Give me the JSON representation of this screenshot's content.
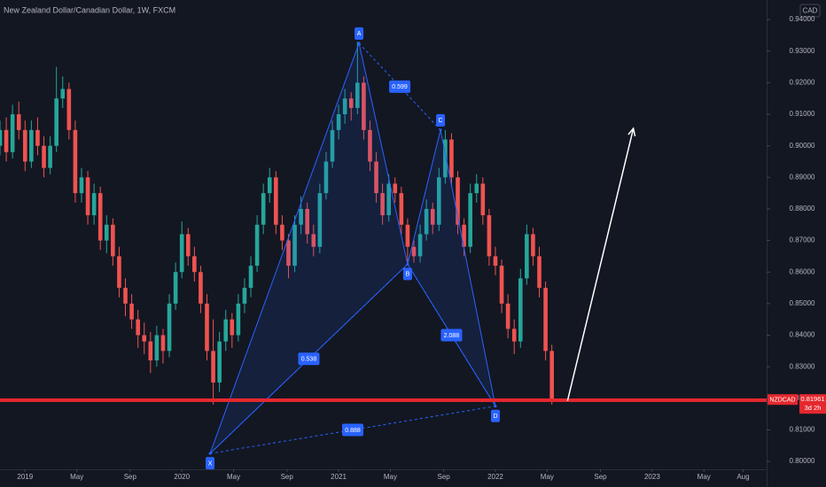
{
  "chart_data": {
    "type": "candlestick",
    "title": "New Zealand Dollar/Canadian Dollar, 1W, FXCM",
    "currency": "CAD",
    "symbol": "NZDCAD",
    "countdown": "3d 2h",
    "last_price": 0.81961,
    "level_line": 0.8194,
    "up_color": "#26a69a",
    "down_color": "#ef5350",
    "level_color": "#e5282e",
    "pattern_color": "#2962ff",
    "grid": false,
    "xlim": [
      2018.84,
      2023.73
    ],
    "ylim": [
      0.7975,
      0.9462
    ],
    "xticks": [
      {
        "value": 2019.0,
        "label": "2019"
      },
      {
        "value": 2019.33,
        "label": "May"
      },
      {
        "value": 2019.67,
        "label": "Sep"
      },
      {
        "value": 2020.0,
        "label": "2020"
      },
      {
        "value": 2020.33,
        "label": "May"
      },
      {
        "value": 2020.67,
        "label": "Sep"
      },
      {
        "value": 2021.0,
        "label": "2021"
      },
      {
        "value": 2021.33,
        "label": "May"
      },
      {
        "value": 2021.67,
        "label": "Sep"
      },
      {
        "value": 2022.0,
        "label": "2022"
      },
      {
        "value": 2022.33,
        "label": "May"
      },
      {
        "value": 2022.67,
        "label": "Sep"
      },
      {
        "value": 2023.0,
        "label": "2023"
      },
      {
        "value": 2023.33,
        "label": "May"
      },
      {
        "value": 2023.58,
        "label": "Aug"
      }
    ],
    "yticks": [
      {
        "value": 0.8,
        "label": "0.80000"
      },
      {
        "value": 0.81,
        "label": "0.81000"
      },
      {
        "value": 0.82,
        "label": "0.82000"
      },
      {
        "value": 0.83,
        "label": "0.83000"
      },
      {
        "value": 0.84,
        "label": "0.84000"
      },
      {
        "value": 0.85,
        "label": "0.85000"
      },
      {
        "value": 0.86,
        "label": "0.86000"
      },
      {
        "value": 0.87,
        "label": "0.87000"
      },
      {
        "value": 0.88,
        "label": "0.88000"
      },
      {
        "value": 0.89,
        "label": "0.89000"
      },
      {
        "value": 0.9,
        "label": "0.90000"
      },
      {
        "value": 0.91,
        "label": "0.91000"
      },
      {
        "value": 0.92,
        "label": "0.92000"
      },
      {
        "value": 0.93,
        "label": "0.93000"
      },
      {
        "value": 0.94,
        "label": "0.94000"
      }
    ],
    "x": [
      2018.84,
      2018.88,
      2018.92,
      2018.96,
      2019.0,
      2019.04,
      2019.08,
      2019.12,
      2019.16,
      2019.2,
      2019.24,
      2019.28,
      2019.32,
      2019.36,
      2019.4,
      2019.44,
      2019.48,
      2019.52,
      2019.56,
      2019.6,
      2019.64,
      2019.68,
      2019.72,
      2019.76,
      2019.8,
      2019.84,
      2019.88,
      2019.92,
      2019.96,
      2020.0,
      2020.04,
      2020.08,
      2020.12,
      2020.16,
      2020.2,
      2020.24,
      2020.28,
      2020.32,
      2020.36,
      2020.4,
      2020.44,
      2020.48,
      2020.52,
      2020.56,
      2020.6,
      2020.64,
      2020.68,
      2020.72,
      2020.76,
      2020.8,
      2020.84,
      2020.88,
      2020.92,
      2020.96,
      2021.0,
      2021.04,
      2021.08,
      2021.12,
      2021.16,
      2021.2,
      2021.24,
      2021.28,
      2021.32,
      2021.36,
      2021.4,
      2021.44,
      2021.48,
      2021.52,
      2021.56,
      2021.6,
      2021.64,
      2021.68,
      2021.72,
      2021.76,
      2021.8,
      2021.84,
      2021.88,
      2021.92,
      2021.96,
      2022.0,
      2022.04,
      2022.08,
      2022.12,
      2022.16,
      2022.2,
      2022.24,
      2022.28,
      2022.32,
      2022.36
    ],
    "ohlc": [
      [
        0.9,
        0.908,
        0.897,
        0.905
      ],
      [
        0.905,
        0.909,
        0.895,
        0.898
      ],
      [
        0.898,
        0.913,
        0.896,
        0.91
      ],
      [
        0.91,
        0.914,
        0.902,
        0.905
      ],
      [
        0.905,
        0.908,
        0.892,
        0.895
      ],
      [
        0.895,
        0.908,
        0.893,
        0.905
      ],
      [
        0.905,
        0.909,
        0.897,
        0.9
      ],
      [
        0.9,
        0.903,
        0.89,
        0.893
      ],
      [
        0.893,
        0.903,
        0.891,
        0.9
      ],
      [
        0.9,
        0.925,
        0.898,
        0.915
      ],
      [
        0.915,
        0.922,
        0.912,
        0.918
      ],
      [
        0.918,
        0.92,
        0.902,
        0.905
      ],
      [
        0.905,
        0.908,
        0.882,
        0.885
      ],
      [
        0.885,
        0.893,
        0.882,
        0.89
      ],
      [
        0.89,
        0.892,
        0.875,
        0.878
      ],
      [
        0.878,
        0.888,
        0.875,
        0.885
      ],
      [
        0.885,
        0.887,
        0.867,
        0.87
      ],
      [
        0.87,
        0.878,
        0.866,
        0.875
      ],
      [
        0.875,
        0.877,
        0.862,
        0.865
      ],
      [
        0.865,
        0.868,
        0.852,
        0.855
      ],
      [
        0.855,
        0.858,
        0.846,
        0.85
      ],
      [
        0.85,
        0.853,
        0.842,
        0.845
      ],
      [
        0.845,
        0.848,
        0.836,
        0.84
      ],
      [
        0.84,
        0.844,
        0.834,
        0.838
      ],
      [
        0.838,
        0.841,
        0.828,
        0.832
      ],
      [
        0.832,
        0.843,
        0.83,
        0.84
      ],
      [
        0.84,
        0.842,
        0.831,
        0.835
      ],
      [
        0.835,
        0.853,
        0.833,
        0.85
      ],
      [
        0.85,
        0.863,
        0.848,
        0.86
      ],
      [
        0.86,
        0.876,
        0.858,
        0.872
      ],
      [
        0.872,
        0.874,
        0.862,
        0.865
      ],
      [
        0.865,
        0.868,
        0.857,
        0.86
      ],
      [
        0.86,
        0.862,
        0.847,
        0.85
      ],
      [
        0.85,
        0.853,
        0.832,
        0.835
      ],
      [
        0.835,
        0.845,
        0.818,
        0.825
      ],
      [
        0.825,
        0.841,
        0.822,
        0.838
      ],
      [
        0.838,
        0.848,
        0.835,
        0.845
      ],
      [
        0.845,
        0.847,
        0.836,
        0.84
      ],
      [
        0.84,
        0.853,
        0.838,
        0.85
      ],
      [
        0.85,
        0.858,
        0.847,
        0.855
      ],
      [
        0.855,
        0.865,
        0.852,
        0.862
      ],
      [
        0.862,
        0.878,
        0.86,
        0.875
      ],
      [
        0.875,
        0.888,
        0.872,
        0.885
      ],
      [
        0.885,
        0.893,
        0.882,
        0.89
      ],
      [
        0.89,
        0.892,
        0.872,
        0.875
      ],
      [
        0.875,
        0.878,
        0.867,
        0.87
      ],
      [
        0.87,
        0.872,
        0.858,
        0.862
      ],
      [
        0.862,
        0.878,
        0.86,
        0.875
      ],
      [
        0.875,
        0.884,
        0.872,
        0.88
      ],
      [
        0.88,
        0.882,
        0.869,
        0.872
      ],
      [
        0.872,
        0.875,
        0.865,
        0.868
      ],
      [
        0.868,
        0.888,
        0.866,
        0.885
      ],
      [
        0.885,
        0.898,
        0.883,
        0.895
      ],
      [
        0.895,
        0.908,
        0.893,
        0.905
      ],
      [
        0.905,
        0.913,
        0.902,
        0.91
      ],
      [
        0.91,
        0.918,
        0.907,
        0.915
      ],
      [
        0.915,
        0.917,
        0.908,
        0.912
      ],
      [
        0.912,
        0.933,
        0.91,
        0.92
      ],
      [
        0.92,
        0.922,
        0.902,
        0.905
      ],
      [
        0.905,
        0.908,
        0.892,
        0.895
      ],
      [
        0.895,
        0.898,
        0.882,
        0.885
      ],
      [
        0.885,
        0.888,
        0.875,
        0.878
      ],
      [
        0.878,
        0.891,
        0.876,
        0.888
      ],
      [
        0.888,
        0.89,
        0.882,
        0.885
      ],
      [
        0.885,
        0.887,
        0.872,
        0.875
      ],
      [
        0.875,
        0.877,
        0.862,
        0.868
      ],
      [
        0.868,
        0.87,
        0.863,
        0.865
      ],
      [
        0.865,
        0.875,
        0.863,
        0.872
      ],
      [
        0.872,
        0.883,
        0.87,
        0.88
      ],
      [
        0.88,
        0.882,
        0.872,
        0.875
      ],
      [
        0.875,
        0.893,
        0.873,
        0.89
      ],
      [
        0.89,
        0.905,
        0.888,
        0.902
      ],
      [
        0.902,
        0.904,
        0.887,
        0.89
      ],
      [
        0.89,
        0.892,
        0.872,
        0.875
      ],
      [
        0.875,
        0.877,
        0.865,
        0.868
      ],
      [
        0.868,
        0.888,
        0.866,
        0.885
      ],
      [
        0.885,
        0.891,
        0.882,
        0.888
      ],
      [
        0.888,
        0.89,
        0.875,
        0.878
      ],
      [
        0.878,
        0.88,
        0.862,
        0.865
      ],
      [
        0.865,
        0.868,
        0.859,
        0.862
      ],
      [
        0.862,
        0.864,
        0.847,
        0.85
      ],
      [
        0.85,
        0.853,
        0.839,
        0.842
      ],
      [
        0.842,
        0.845,
        0.834,
        0.838
      ],
      [
        0.838,
        0.861,
        0.836,
        0.858
      ],
      [
        0.858,
        0.875,
        0.856,
        0.872
      ],
      [
        0.872,
        0.874,
        0.862,
        0.865
      ],
      [
        0.865,
        0.868,
        0.852,
        0.855
      ],
      [
        0.855,
        0.857,
        0.832,
        0.835
      ],
      [
        0.835,
        0.837,
        0.818,
        0.8196
      ]
    ],
    "pattern": {
      "points": [
        {
          "label": "X",
          "x": 2020.18,
          "y": 0.8025
        },
        {
          "label": "A",
          "x": 2021.13,
          "y": 0.9325
        },
        {
          "label": "B",
          "x": 2021.44,
          "y": 0.8625
        },
        {
          "label": "C",
          "x": 2021.65,
          "y": 0.905
        },
        {
          "label": "D",
          "x": 2022.0,
          "y": 0.8175
        }
      ],
      "ratios": {
        "AC": 0.599,
        "XB": 0.538,
        "BD": 2.088,
        "XD": 0.888
      }
    },
    "arrow": {
      "from": [
        2022.46,
        0.8192
      ],
      "to": [
        2022.88,
        0.9055
      ]
    }
  }
}
